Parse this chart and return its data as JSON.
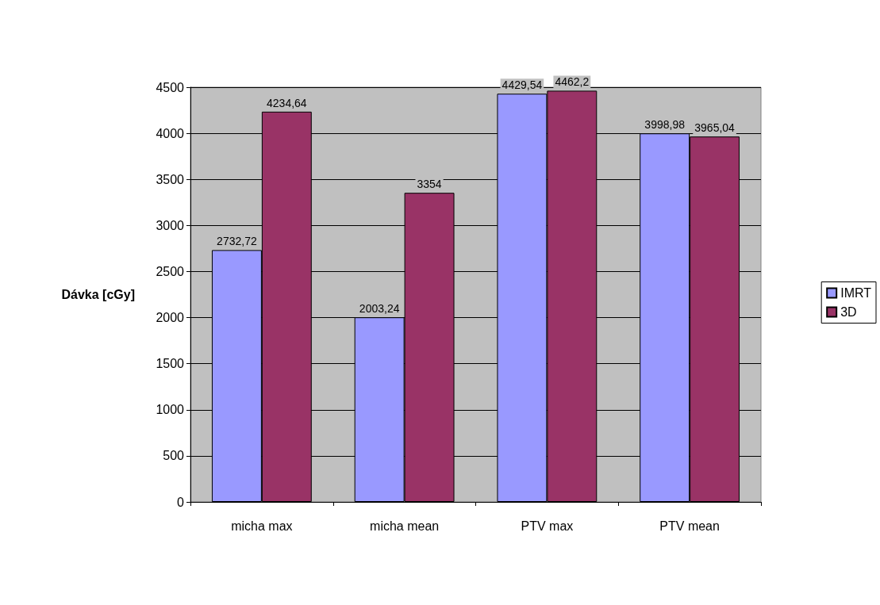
{
  "chart_data": {
    "type": "bar",
    "ylabel": "Dávka [cGy]",
    "categories": [
      "micha max",
      "micha mean",
      "PTV max",
      "PTV mean"
    ],
    "series": [
      {
        "name": "IMRT",
        "color": "#9999ff",
        "values": [
          2732.72,
          2003.24,
          4429.54,
          3998.98
        ],
        "value_labels": [
          "2732,72",
          "2003,24",
          "4429,54",
          "3998,98"
        ]
      },
      {
        "name": "3D",
        "color": "#993366",
        "values": [
          4234.64,
          3354,
          4462.2,
          3965.04
        ],
        "value_labels": [
          "4234,64",
          "3354",
          "4462,2",
          "3965,04"
        ]
      }
    ],
    "ylim": [
      0,
      4500
    ],
    "yticks": [
      0,
      500,
      1000,
      1500,
      2000,
      2500,
      3000,
      3500,
      4000,
      4500
    ],
    "grid": "y",
    "legend": "right"
  }
}
